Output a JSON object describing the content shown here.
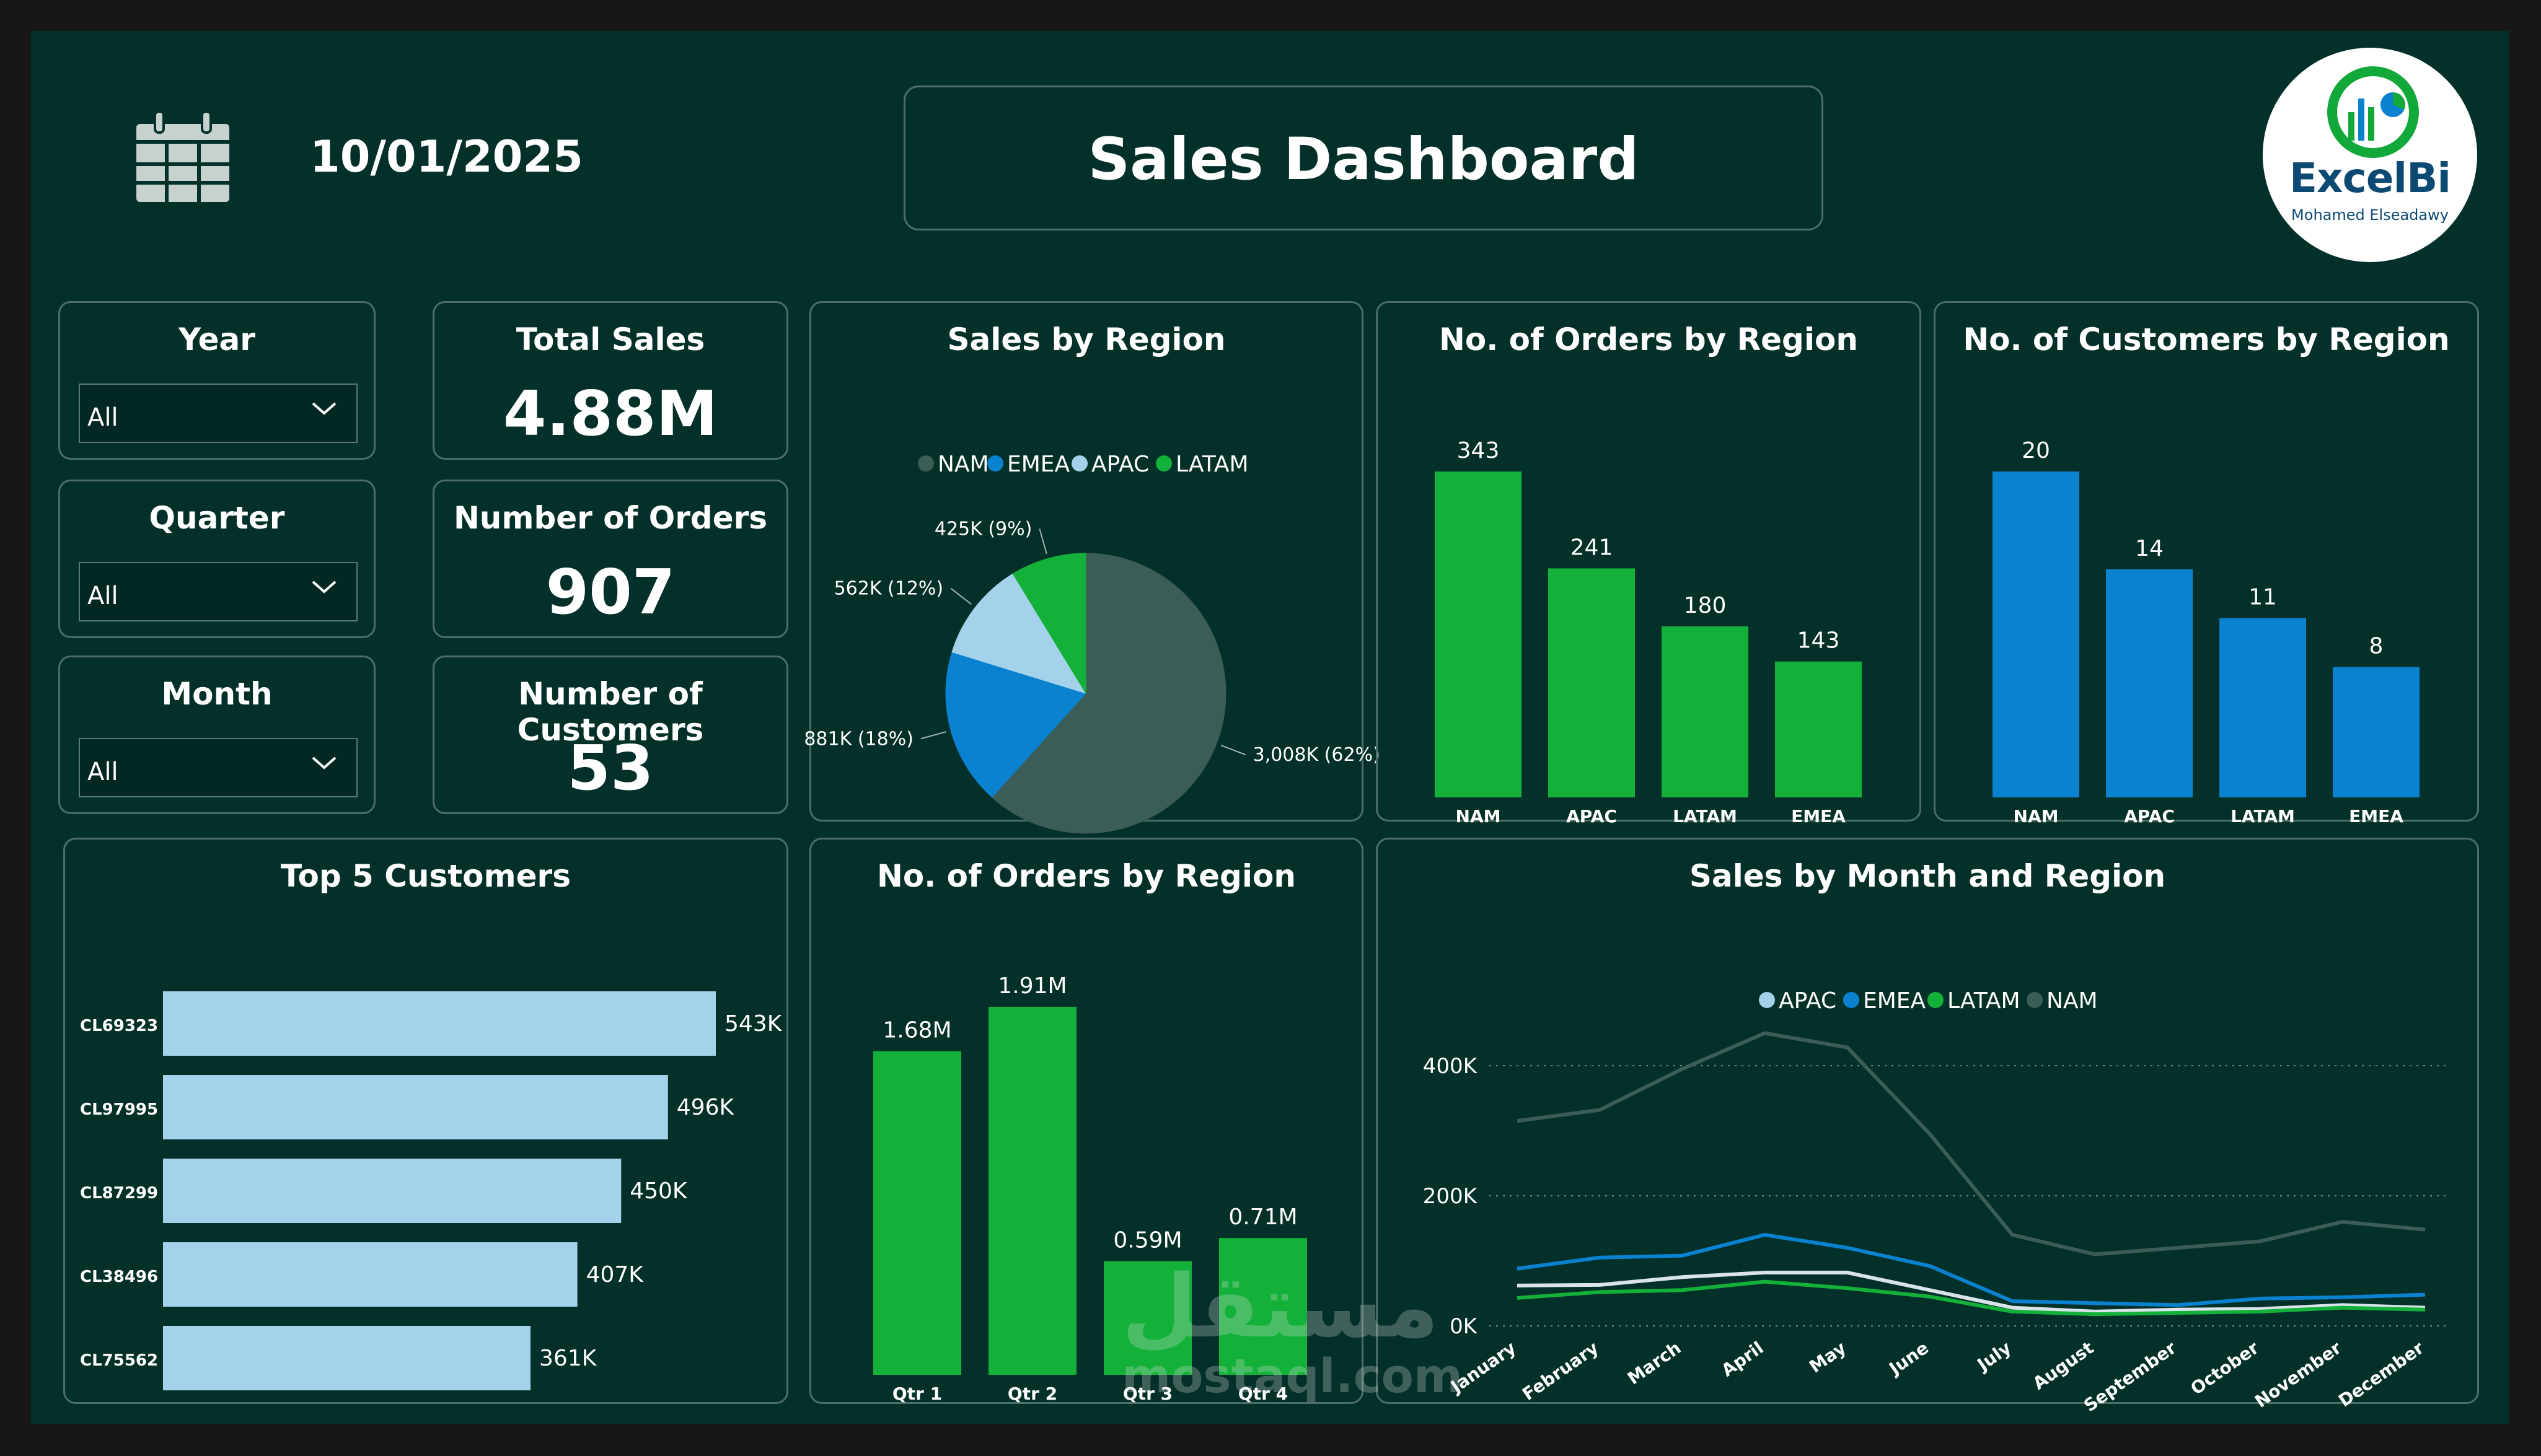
{
  "header": {
    "date": "10/01/2025",
    "title": "Sales Dashboard",
    "logo_text": "ExcelBi",
    "logo_subtext": "Mohamed Elseadawy"
  },
  "filters": [
    {
      "label": "Year",
      "value": "All"
    },
    {
      "label": "Quarter",
      "value": "All"
    },
    {
      "label": "Month",
      "value": "All"
    }
  ],
  "kpis": [
    {
      "label": "Total Sales",
      "value": "4.88M"
    },
    {
      "label": "Number of Orders",
      "value": "907"
    },
    {
      "label": "Number of Customers",
      "value": "53"
    }
  ],
  "watermark": {
    "arabic": "مستقل",
    "latin": "mostaql.com"
  },
  "colors": {
    "NAM": "#3b5d57",
    "EMEA": "#0a82d0",
    "APAC": "#a3d2ea",
    "LATAM": "#13b13a",
    "green": "#13b13a",
    "blue": "#0a82d0",
    "light": "#a3d2ea"
  },
  "chart_data": [
    {
      "id": "sales_by_region",
      "type": "pie",
      "title": "Sales by Region",
      "legend": [
        "NAM",
        "EMEA",
        "APAC",
        "LATAM"
      ],
      "slices": [
        {
          "name": "NAM",
          "value": 3008,
          "label": "3,008K (62%)"
        },
        {
          "name": "EMEA",
          "value": 881,
          "label": "881K (18%)"
        },
        {
          "name": "APAC",
          "value": 562,
          "label": "562K (12%)"
        },
        {
          "name": "LATAM",
          "value": 425,
          "label": "425K (9%)"
        }
      ]
    },
    {
      "id": "orders_by_region",
      "type": "bar",
      "title": "No. of Orders by Region",
      "categories": [
        "NAM",
        "APAC",
        "LATAM",
        "EMEA"
      ],
      "values": [
        343,
        241,
        180,
        143
      ],
      "labels": [
        "343",
        "241",
        "180",
        "143"
      ],
      "color": "#13b13a"
    },
    {
      "id": "customers_by_region",
      "type": "bar",
      "title": "No. of Customers by Region",
      "categories": [
        "NAM",
        "APAC",
        "LATAM",
        "EMEA"
      ],
      "values": [
        20,
        14,
        11,
        8
      ],
      "labels": [
        "20",
        "14",
        "11",
        "8"
      ],
      "color": "#0a82d0"
    },
    {
      "id": "top_customers",
      "type": "bar",
      "orientation": "horizontal",
      "title": "Top 5 Customers",
      "categories": [
        "CL69323",
        "CL97995",
        "CL87299",
        "CL38496",
        "CL75562"
      ],
      "values": [
        543,
        496,
        450,
        407,
        361
      ],
      "labels": [
        "543K",
        "496K",
        "450K",
        "407K",
        "361K"
      ],
      "color": "#a3d2ea"
    },
    {
      "id": "orders_by_quarter",
      "type": "bar",
      "title": "No. of Orders by Region",
      "categories": [
        "Qtr 1",
        "Qtr 2",
        "Qtr 3",
        "Qtr 4"
      ],
      "values": [
        1.68,
        1.91,
        0.59,
        0.71
      ],
      "labels": [
        "1.68M",
        "1.91M",
        "0.59M",
        "0.71M"
      ],
      "color": "#13b13a"
    },
    {
      "id": "sales_by_month_region",
      "type": "line",
      "title": "Sales by Month and Region",
      "legend": [
        "APAC",
        "EMEA",
        "LATAM",
        "NAM"
      ],
      "x": [
        "January",
        "February",
        "March",
        "April",
        "May",
        "June",
        "July",
        "August",
        "September",
        "October",
        "November",
        "December"
      ],
      "ylim": [
        0,
        450000
      ],
      "yticks": [
        0,
        200000,
        400000
      ],
      "ytick_labels": [
        "0K",
        "200K",
        "400K"
      ],
      "series": [
        {
          "name": "NAM",
          "values": [
            315000,
            332000,
            395000,
            450000,
            428000,
            295000,
            140000,
            110000,
            120000,
            130000,
            160000,
            148000
          ]
        },
        {
          "name": "EMEA",
          "values": [
            88000,
            105000,
            108000,
            140000,
            120000,
            92000,
            38000,
            35000,
            32000,
            42000,
            44000,
            48000
          ]
        },
        {
          "name": "APAC",
          "values": [
            62000,
            63000,
            75000,
            82000,
            82000,
            55000,
            28000,
            22000,
            25000,
            26000,
            32000,
            28000
          ]
        },
        {
          "name": "LATAM",
          "values": [
            43000,
            52000,
            55000,
            68000,
            58000,
            45000,
            22000,
            18000,
            20000,
            22000,
            28000,
            25000
          ]
        }
      ]
    }
  ]
}
